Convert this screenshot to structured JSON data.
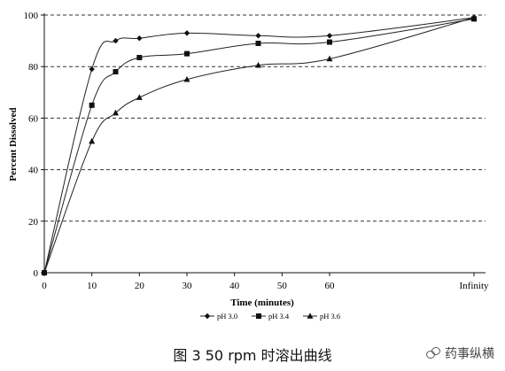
{
  "chart_data": {
    "type": "line",
    "ylabel": "Percent Dissolved",
    "xlabel": "Time (minutes)",
    "ylim": [
      0,
      100
    ],
    "yticks": [
      0,
      20,
      40,
      60,
      80,
      100
    ],
    "xticks": [
      "0",
      "10",
      "20",
      "30",
      "40",
      "50",
      "60",
      "Infinity"
    ],
    "grid": "horizontal-dashed",
    "legend_placement": "bottom-center",
    "categories": [
      "0",
      "10",
      "15",
      "20",
      "30",
      "45",
      "60",
      "Infinity"
    ],
    "series": [
      {
        "name": "pH 3.0",
        "marker": "diamond",
        "values": [
          0,
          79,
          90,
          91,
          93,
          92,
          92,
          99
        ]
      },
      {
        "name": "pH 3.4",
        "marker": "square",
        "values": [
          0,
          65,
          78,
          83.5,
          85,
          89,
          89.5,
          98.5
        ]
      },
      {
        "name": "pH 3.6",
        "marker": "triangle",
        "values": [
          0,
          51,
          62,
          68,
          75,
          80.5,
          83,
          99
        ]
      }
    ]
  },
  "caption": "图 3 50 rpm 时溶出曲线",
  "watermark": "药事纵横"
}
